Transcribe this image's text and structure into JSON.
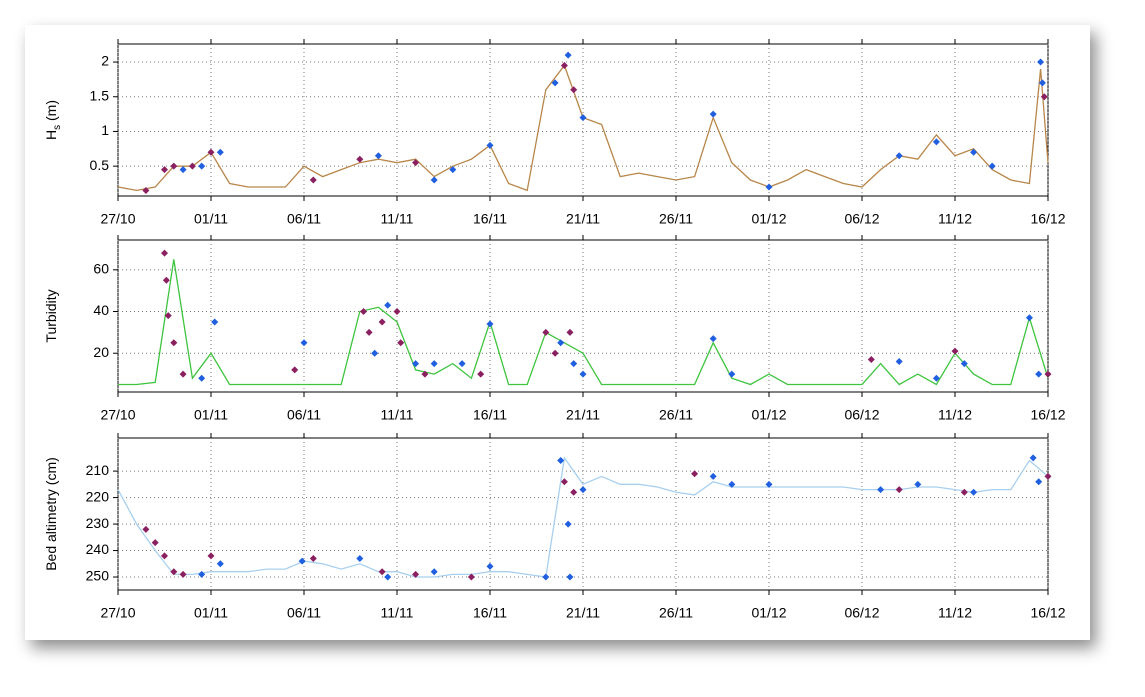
{
  "chart_data": [
    {
      "type": "line",
      "ylabel": {
        "main": "H",
        "sub": "s",
        "rest": " (m)"
      },
      "x": [
        0,
        1,
        2,
        3,
        4,
        5,
        6,
        7,
        8,
        9,
        10,
        11,
        12,
        13,
        14,
        15,
        16,
        17,
        18,
        19,
        20,
        21,
        22,
        23,
        24,
        25,
        26,
        27,
        28,
        29,
        30,
        31,
        32,
        33,
        34,
        35,
        36,
        37,
        38,
        39,
        40,
        41,
        42,
        43,
        44,
        45,
        46,
        47,
        48,
        49,
        49.6,
        50
      ],
      "xlim": [
        0,
        50
      ],
      "xticks": [
        {
          "value": 0,
          "label": "27/10"
        },
        {
          "value": 5,
          "label": "01/11"
        },
        {
          "value": 10,
          "label": "06/11"
        },
        {
          "value": 15,
          "label": "11/11"
        },
        {
          "value": 20,
          "label": "16/11"
        },
        {
          "value": 25,
          "label": "21/11"
        },
        {
          "value": 30,
          "label": "26/11"
        },
        {
          "value": 35,
          "label": "01/12"
        },
        {
          "value": 40,
          "label": "06/12"
        },
        {
          "value": 45,
          "label": "11/12"
        },
        {
          "value": 50,
          "label": "16/12"
        }
      ],
      "ylim": [
        0.07,
        2.26
      ],
      "yticks": [
        0.5,
        1,
        1.5,
        2
      ],
      "grid": true,
      "series": [
        {
          "type": "line",
          "color": "#b8864a",
          "values": [
            0.2,
            0.15,
            0.2,
            0.5,
            0.5,
            0.7,
            0.25,
            0.2,
            0.2,
            0.2,
            0.5,
            0.35,
            0.45,
            0.55,
            0.6,
            0.55,
            0.6,
            0.35,
            0.5,
            0.6,
            0.8,
            0.25,
            0.15,
            1.6,
            1.95,
            1.2,
            1.1,
            0.35,
            0.4,
            0.35,
            0.3,
            0.35,
            1.2,
            0.55,
            0.3,
            0.2,
            0.3,
            0.45,
            0.35,
            0.25,
            0.2,
            0.45,
            0.65,
            0.6,
            0.95,
            0.65,
            0.75,
            0.45,
            0.3,
            0.25,
            1.9,
            0.55
          ]
        },
        {
          "type": "scatter",
          "color": "#8b2060",
          "x": [
            1.5,
            2.5,
            3,
            4,
            5,
            10.5,
            13,
            16,
            24,
            24.5,
            49.8
          ],
          "values": [
            0.15,
            0.45,
            0.5,
            0.5,
            0.7,
            0.3,
            0.6,
            0.55,
            1.95,
            1.6,
            1.5
          ]
        },
        {
          "type": "scatter",
          "color": "#1f5fe0",
          "x": [
            3.5,
            4.5,
            5.5,
            14,
            17,
            18,
            20,
            23.5,
            24.2,
            25,
            32,
            35,
            42,
            44,
            46,
            47,
            49.6,
            49.7
          ],
          "values": [
            0.45,
            0.5,
            0.7,
            0.65,
            0.3,
            0.45,
            0.8,
            1.7,
            2.1,
            1.2,
            1.25,
            0.2,
            0.65,
            0.85,
            0.7,
            0.5,
            2.0,
            1.7
          ]
        }
      ]
    },
    {
      "type": "line",
      "ylabel": {
        "main": "Turbidity"
      },
      "x": [
        0,
        1,
        2,
        3,
        4,
        5,
        6,
        7,
        8,
        9,
        10,
        11,
        12,
        13,
        14,
        15,
        16,
        17,
        18,
        19,
        20,
        21,
        22,
        23,
        24,
        25,
        26,
        27,
        28,
        29,
        30,
        31,
        32,
        33,
        34,
        35,
        36,
        37,
        38,
        39,
        40,
        41,
        42,
        43,
        44,
        45,
        46,
        47,
        48,
        49,
        50
      ],
      "xlim": [
        0,
        50
      ],
      "xticks": [
        {
          "value": 0,
          "label": "27/10"
        },
        {
          "value": 5,
          "label": "01/11"
        },
        {
          "value": 10,
          "label": "06/11"
        },
        {
          "value": 15,
          "label": "11/11"
        },
        {
          "value": 20,
          "label": "16/11"
        },
        {
          "value": 25,
          "label": "21/11"
        },
        {
          "value": 30,
          "label": "26/11"
        },
        {
          "value": 35,
          "label": "01/12"
        },
        {
          "value": 40,
          "label": "06/12"
        },
        {
          "value": 45,
          "label": "11/12"
        },
        {
          "value": 50,
          "label": "16/12"
        }
      ],
      "ylim": [
        1.4,
        74.3
      ],
      "yticks": [
        20,
        40,
        60
      ],
      "grid": true,
      "series": [
        {
          "type": "line",
          "color": "#3ec43e",
          "values": [
            5,
            5,
            6,
            65,
            8,
            20,
            5,
            5,
            5,
            5,
            5,
            5,
            5,
            40,
            42,
            35,
            12,
            10,
            15,
            8,
            35,
            5,
            5,
            30,
            25,
            20,
            5,
            5,
            5,
            5,
            5,
            5,
            25,
            8,
            5,
            10,
            5,
            5,
            5,
            5,
            5,
            15,
            5,
            10,
            5,
            20,
            10,
            5,
            5,
            37,
            8
          ]
        },
        {
          "type": "scatter",
          "color": "#8b2060",
          "x": [
            2.5,
            2.6,
            2.7,
            3,
            3.5,
            9.5,
            13.2,
            13.5,
            14.2,
            15,
            15.2,
            16.5,
            19.5,
            23,
            23.5,
            24.3,
            40.5,
            45,
            50
          ],
          "values": [
            68,
            55,
            38,
            25,
            10,
            12,
            40,
            30,
            35,
            40,
            25,
            10,
            10,
            30,
            20,
            30,
            17,
            21,
            10
          ]
        },
        {
          "type": "scatter",
          "color": "#1f5fe0",
          "x": [
            5.2,
            4.5,
            10,
            13.8,
            14.5,
            16,
            17,
            18.5,
            20,
            23.8,
            24.5,
            25,
            32,
            33,
            42,
            44,
            45.5,
            49,
            49.5
          ],
          "values": [
            35,
            8,
            25,
            20,
            43,
            15,
            15,
            15,
            34,
            25,
            15,
            10,
            27,
            10,
            16,
            8,
            15,
            37,
            10
          ]
        }
      ]
    },
    {
      "type": "line",
      "ylabel": {
        "main": "Bed altimetry (cm)"
      },
      "x": [
        0,
        1,
        2,
        3,
        4,
        5,
        6,
        7,
        8,
        9,
        10,
        11,
        12,
        13,
        14,
        15,
        16,
        17,
        18,
        19,
        20,
        21,
        22,
        23,
        24,
        25,
        26,
        27,
        28,
        29,
        30,
        31,
        32,
        33,
        34,
        35,
        36,
        37,
        38,
        39,
        40,
        41,
        42,
        43,
        44,
        45,
        46,
        47,
        48,
        49,
        50
      ],
      "xlim": [
        0,
        50
      ],
      "xticks": [
        {
          "value": 0,
          "label": "27/10"
        },
        {
          "value": 5,
          "label": "01/11"
        },
        {
          "value": 10,
          "label": "06/11"
        },
        {
          "value": 15,
          "label": "11/11"
        },
        {
          "value": 20,
          "label": "16/11"
        },
        {
          "value": 25,
          "label": "21/11"
        },
        {
          "value": 30,
          "label": "26/11"
        },
        {
          "value": 35,
          "label": "01/12"
        },
        {
          "value": 40,
          "label": "06/12"
        },
        {
          "value": 45,
          "label": "11/12"
        },
        {
          "value": 50,
          "label": "16/12"
        }
      ],
      "ylim": [
        254.9,
        197.5
      ],
      "yticks": [
        210,
        220,
        230,
        240,
        250
      ],
      "grid": true,
      "series": [
        {
          "type": "line",
          "color": "#a8d0ee",
          "values": [
            217,
            230,
            240,
            249,
            249,
            248,
            248,
            248,
            247,
            247,
            244,
            245,
            247,
            245,
            248,
            248,
            250,
            250,
            249,
            249,
            248,
            248,
            249,
            250,
            205,
            215,
            212,
            215,
            215,
            216,
            218,
            219,
            214,
            216,
            216,
            216,
            216,
            216,
            216,
            216,
            217,
            217,
            217,
            216,
            216,
            217,
            218,
            217,
            217,
            206,
            212
          ]
        },
        {
          "type": "scatter",
          "color": "#8b2060",
          "x": [
            1.5,
            2,
            2.5,
            3,
            3.5,
            5,
            10.5,
            14.2,
            16,
            19,
            24,
            24.5,
            31,
            42,
            45.5,
            50
          ],
          "values": [
            232,
            237,
            242,
            248,
            249,
            242,
            243,
            248,
            249,
            250,
            214,
            218,
            211,
            217,
            218,
            212
          ]
        },
        {
          "type": "scatter",
          "color": "#1f5fe0",
          "x": [
            4.5,
            5.5,
            9.9,
            13,
            14.5,
            17,
            20,
            23,
            23.8,
            24.2,
            24.3,
            25,
            32,
            33,
            35,
            41,
            43,
            46,
            49.2,
            49.5
          ],
          "values": [
            249,
            245,
            244,
            243,
            250,
            248,
            246,
            250,
            206,
            230,
            250,
            217,
            212,
            215,
            215,
            217,
            215,
            218,
            205,
            214
          ]
        }
      ]
    }
  ]
}
